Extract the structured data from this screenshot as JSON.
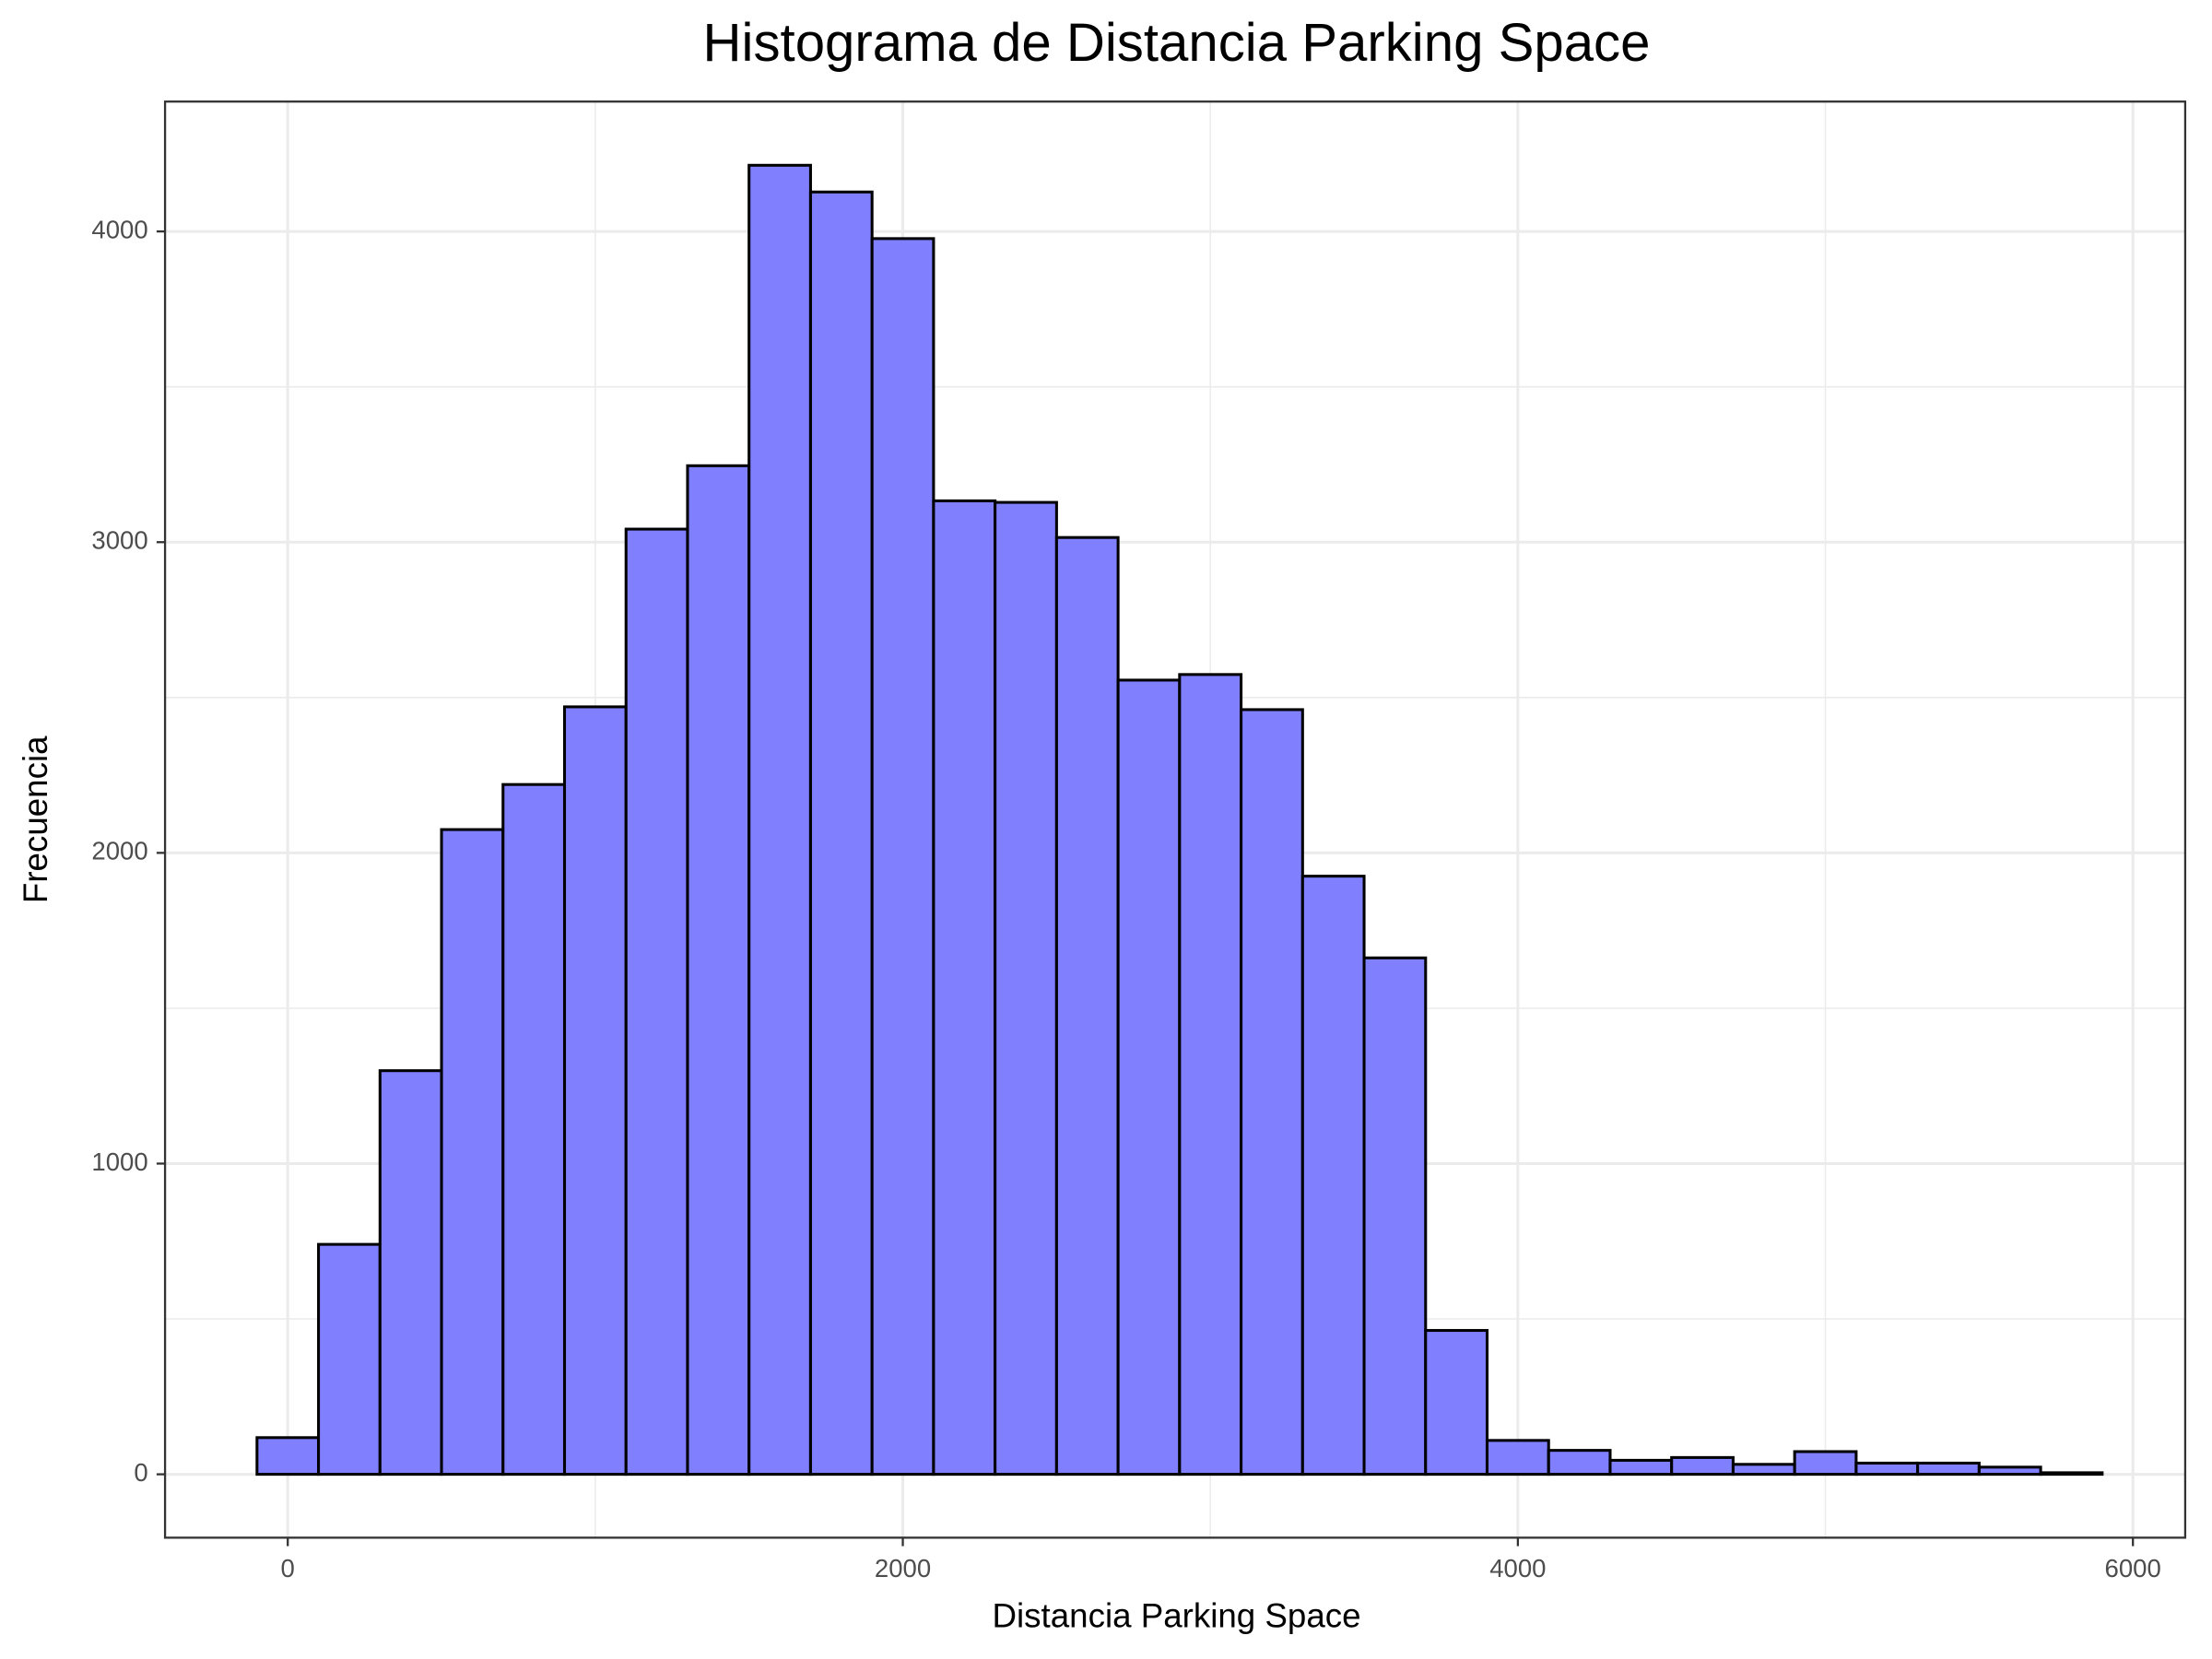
{
  "chart_data": {
    "type": "histogram",
    "title": "Histograma de Distancia Parking Space",
    "x_label": "Distancia Parking Space",
    "y_label": "Frecuencia",
    "bins": [
      -100,
      100,
      300,
      500,
      700,
      900,
      1100,
      1300,
      1500,
      1700,
      1900,
      2100,
      2300,
      2500,
      2700,
      2900,
      3100,
      3300,
      3500,
      3700,
      3900,
      4100,
      4300,
      4500,
      4700,
      4900,
      5100,
      5300,
      5500,
      5700,
      5900
    ],
    "values": [
      118,
      740,
      1299,
      2075,
      2220,
      2470,
      3042,
      3246,
      4213,
      4127,
      3977,
      3133,
      3128,
      3015,
      2556,
      2574,
      2461,
      1925,
      1662,
      463,
      109,
      77,
      45,
      54,
      32,
      73,
      36,
      36,
      23,
      5
    ],
    "color": "#8080ff",
    "xlim": [
      -399,
      6170
    ],
    "xticks": [
      0,
      2000,
      4000,
      6000
    ],
    "ylim": [
      -204,
      4418
    ],
    "yticks": [
      0,
      1000,
      2000,
      3000,
      4000
    ],
    "grid": true
  }
}
